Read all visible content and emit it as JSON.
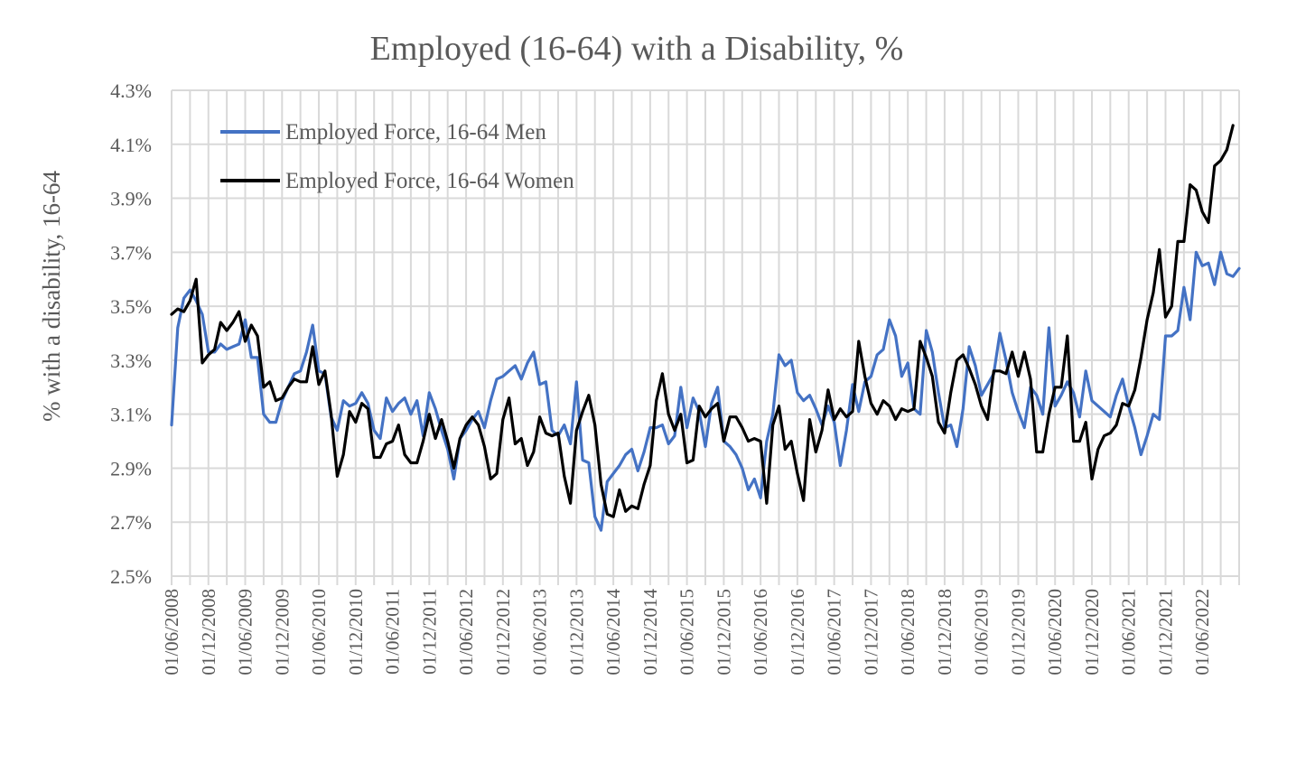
{
  "chart_data": {
    "type": "line",
    "title": "Employed (16-64) with a Disability, %",
    "xlabel": "",
    "ylabel": "% with a disability, 16-64",
    "ylim": [
      2.5,
      4.3
    ],
    "y_ticks": [
      "2.5%",
      "2.7%",
      "2.9%",
      "3.1%",
      "3.3%",
      "3.5%",
      "3.7%",
      "3.9%",
      "4.1%",
      "4.3%"
    ],
    "x_start_month": "01/06/2008",
    "x_ticks": [
      "01/06/2008",
      "01/12/2008",
      "01/06/2009",
      "01/12/2009",
      "01/06/2010",
      "01/12/2010",
      "01/06/2011",
      "01/12/2011",
      "01/06/2012",
      "01/12/2012",
      "01/06/2013",
      "01/12/2013",
      "01/06/2014",
      "01/12/2014",
      "01/06/2015",
      "01/12/2015",
      "01/06/2016",
      "01/12/2016",
      "01/06/2017",
      "01/12/2017",
      "01/06/2018",
      "01/12/2018",
      "01/06/2019",
      "01/12/2019",
      "01/06/2020",
      "01/12/2020",
      "01/06/2021",
      "01/12/2021",
      "01/06/2022"
    ],
    "grid": true,
    "legend_position": "top-left",
    "series": [
      {
        "name": "Employed Force, 16-64 Men",
        "color": "#4472c4",
        "values": [
          3.06,
          3.42,
          3.53,
          3.56,
          3.52,
          3.47,
          3.33,
          3.33,
          3.36,
          3.34,
          3.35,
          3.36,
          3.45,
          3.31,
          3.31,
          3.1,
          3.07,
          3.07,
          3.15,
          3.2,
          3.25,
          3.26,
          3.33,
          3.43,
          3.26,
          3.25,
          3.09,
          3.04,
          3.15,
          3.13,
          3.14,
          3.18,
          3.14,
          3.04,
          3.01,
          3.16,
          3.11,
          3.14,
          3.16,
          3.1,
          3.15,
          3.02,
          3.18,
          3.12,
          3.04,
          2.97,
          2.86,
          3.01,
          3.04,
          3.08,
          3.11,
          3.05,
          3.15,
          3.23,
          3.24,
          3.26,
          3.28,
          3.23,
          3.29,
          3.33,
          3.21,
          3.22,
          3.04,
          3.02,
          3.06,
          2.99,
          3.22,
          2.93,
          2.92,
          2.72,
          2.67,
          2.85,
          2.88,
          2.91,
          2.95,
          2.97,
          2.89,
          2.96,
          3.05,
          3.05,
          3.06,
          2.99,
          3.02,
          3.2,
          3.05,
          3.16,
          3.11,
          2.98,
          3.14,
          3.2,
          3.0,
          2.98,
          2.95,
          2.9,
          2.82,
          2.86,
          2.79,
          3.0,
          3.1,
          3.32,
          3.28,
          3.3,
          3.18,
          3.15,
          3.17,
          3.12,
          3.06,
          3.13,
          3.07,
          2.91,
          3.04,
          3.21,
          3.11,
          3.22,
          3.24,
          3.32,
          3.34,
          3.45,
          3.39,
          3.24,
          3.29,
          3.12,
          3.1,
          3.41,
          3.33,
          3.18,
          3.05,
          3.06,
          2.98,
          3.12,
          3.35,
          3.28,
          3.17,
          3.21,
          3.25,
          3.4,
          3.3,
          3.18,
          3.11,
          3.05,
          3.2,
          3.17,
          3.1,
          3.42,
          3.13,
          3.17,
          3.22,
          3.18,
          3.09,
          3.26,
          3.15,
          3.13,
          3.11,
          3.09,
          3.17,
          3.23,
          3.13,
          3.05,
          2.95,
          3.02,
          3.1,
          3.08,
          3.39,
          3.39,
          3.41,
          3.57,
          3.45,
          3.7,
          3.65,
          3.66,
          3.58,
          3.7,
          3.62,
          3.61,
          3.64
        ]
      },
      {
        "name": "Employed Force, 16-64 Women",
        "color": "#000000",
        "values": [
          3.47,
          3.49,
          3.48,
          3.52,
          3.6,
          3.29,
          3.32,
          3.34,
          3.44,
          3.41,
          3.44,
          3.48,
          3.37,
          3.43,
          3.39,
          3.2,
          3.22,
          3.15,
          3.16,
          3.2,
          3.23,
          3.22,
          3.22,
          3.35,
          3.21,
          3.26,
          3.1,
          2.87,
          2.95,
          3.11,
          3.07,
          3.14,
          3.12,
          2.94,
          2.94,
          2.99,
          3.0,
          3.06,
          2.95,
          2.92,
          2.92,
          3.0,
          3.1,
          3.01,
          3.08,
          3.0,
          2.9,
          3.01,
          3.06,
          3.09,
          3.06,
          2.98,
          2.86,
          2.88,
          3.08,
          3.16,
          2.99,
          3.01,
          2.91,
          2.96,
          3.09,
          3.03,
          3.02,
          3.03,
          2.87,
          2.77,
          3.04,
          3.11,
          3.17,
          3.06,
          2.84,
          2.73,
          2.72,
          2.82,
          2.74,
          2.76,
          2.75,
          2.84,
          2.91,
          3.15,
          3.25,
          3.1,
          3.04,
          3.1,
          2.92,
          2.93,
          3.13,
          3.09,
          3.12,
          3.14,
          3.0,
          3.09,
          3.09,
          3.05,
          3.0,
          3.01,
          3.0,
          2.77,
          3.06,
          3.13,
          2.97,
          3.0,
          2.88,
          2.78,
          3.08,
          2.96,
          3.04,
          3.19,
          3.08,
          3.12,
          3.09,
          3.11,
          3.37,
          3.24,
          3.14,
          3.1,
          3.15,
          3.13,
          3.08,
          3.12,
          3.11,
          3.12,
          3.37,
          3.31,
          3.24,
          3.07,
          3.03,
          3.18,
          3.3,
          3.32,
          3.27,
          3.21,
          3.13,
          3.08,
          3.26,
          3.26,
          3.25,
          3.33,
          3.24,
          3.33,
          3.23,
          2.96,
          2.96,
          3.1,
          3.2,
          3.2,
          3.39,
          3.0,
          3.0,
          3.07,
          2.86,
          2.97,
          3.02,
          3.03,
          3.06,
          3.14,
          3.13,
          3.19,
          3.31,
          3.45,
          3.55,
          3.71,
          3.46,
          3.5,
          3.74,
          3.74,
          3.95,
          3.93,
          3.85,
          3.81,
          4.02,
          4.04,
          4.08,
          4.17
        ]
      }
    ]
  }
}
